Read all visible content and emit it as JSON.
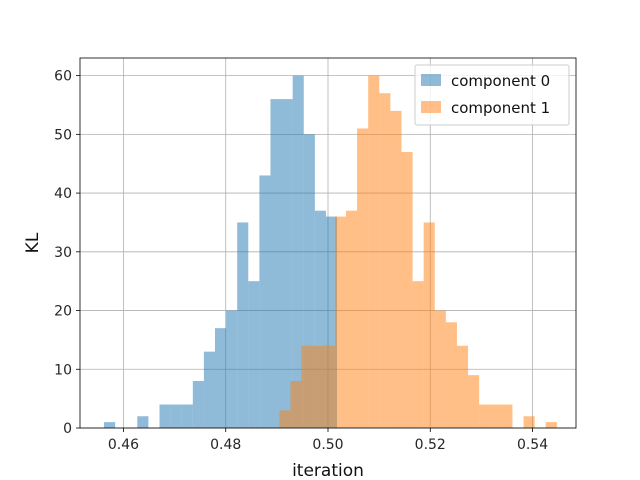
{
  "chart_data": {
    "type": "bar",
    "subtype": "overlapping-histogram",
    "title": "",
    "xlabel": "iteration",
    "ylabel": "KL",
    "xlim": [
      0.4515,
      0.5485
    ],
    "ylim": [
      0,
      63
    ],
    "xticks": [
      "0.46",
      "0.48",
      "0.50",
      "0.52",
      "0.54"
    ],
    "xtick_values": [
      0.46,
      0.48,
      0.5,
      0.52,
      0.54
    ],
    "yticks": [
      "0",
      "10",
      "20",
      "30",
      "40",
      "50",
      "60"
    ],
    "ytick_values": [
      0,
      10,
      20,
      30,
      40,
      50,
      60
    ],
    "grid": true,
    "legend_position": "top-right",
    "series": [
      {
        "name": "component 0",
        "color": "#1f77b4",
        "alpha": 0.5,
        "bin_start": 0.4562,
        "bin_width": 0.00217,
        "counts": [
          1,
          0,
          0,
          2,
          0,
          4,
          4,
          4,
          8,
          13,
          17,
          20,
          35,
          25,
          43,
          56,
          56,
          60,
          50,
          37,
          36
        ]
      },
      {
        "name": "component 1",
        "color": "#ff7f0e",
        "alpha": 0.5,
        "bin_start": 0.4905,
        "bin_width": 0.00217,
        "counts": [
          3,
          8,
          14,
          14,
          14,
          36,
          37,
          51,
          60,
          57,
          54,
          47,
          25,
          35,
          20,
          18,
          14,
          9,
          4,
          4,
          4,
          0,
          2,
          0,
          1
        ]
      }
    ]
  }
}
